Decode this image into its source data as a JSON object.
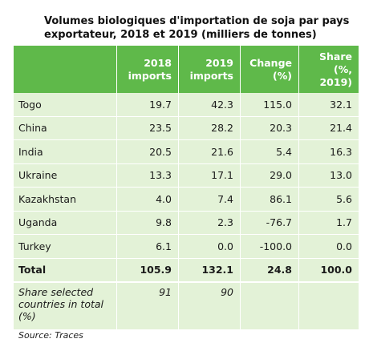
{
  "title": "Volumes biologiques d'importation de soja par pays exportateur, 2018 et 2019 (milliers de tonnes)",
  "table": {
    "headers": [
      "",
      "2018 imports",
      "2019 imports",
      "Change (%)",
      "Share (%, 2019)"
    ],
    "rows": [
      [
        "Togo",
        "19.7",
        "42.3",
        "115.0",
        "32.1"
      ],
      [
        "China",
        "23.5",
        "28.2",
        "20.3",
        "21.4"
      ],
      [
        "India",
        "20.5",
        "21.6",
        "5.4",
        "16.3"
      ],
      [
        "Ukraine",
        "13.3",
        "17.1",
        "29.0",
        "13.0"
      ],
      [
        "Kazakhstan",
        "4.0",
        "7.4",
        "86.1",
        "5.6"
      ],
      [
        "Uganda",
        "9.8",
        "2.3",
        "-76.7",
        "1.7"
      ],
      [
        "Turkey",
        "6.1",
        "0.0",
        "-100.0",
        "0.0"
      ]
    ],
    "total": [
      "Total",
      "105.9",
      "132.1",
      "24.8",
      "100.0"
    ],
    "share": [
      "Share selected countries in total (%)",
      "91",
      "90",
      "",
      ""
    ]
  },
  "source": "Source: Traces",
  "colors": {
    "header": "#5fb94a",
    "cell": "#e3f2d7"
  }
}
